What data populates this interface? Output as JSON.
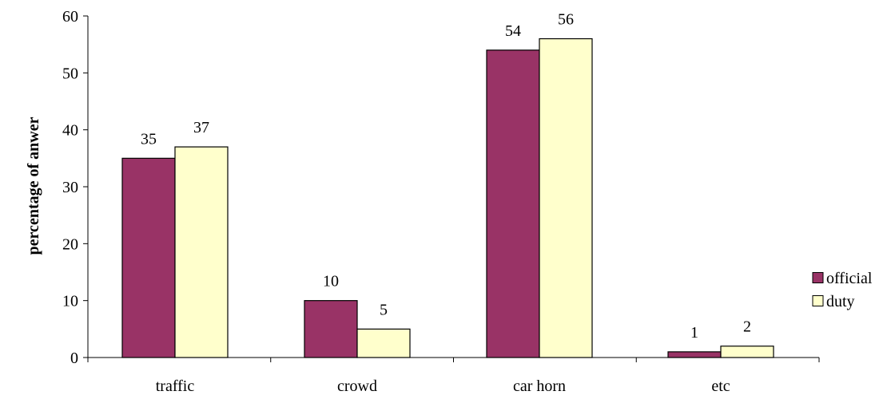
{
  "chart_data": {
    "type": "bar",
    "title": "",
    "xlabel": "",
    "ylabel": "percentage of anwer",
    "categories": [
      "traffic",
      "crowd",
      "car horn",
      "etc"
    ],
    "series": [
      {
        "name": "official",
        "values": [
          35,
          10,
          54,
          1
        ],
        "labels": [
          "35",
          "10",
          "54",
          "1"
        ],
        "color": "#993366"
      },
      {
        "name": "duty",
        "values": [
          37,
          5,
          56,
          2
        ],
        "labels": [
          "37",
          "5",
          "56",
          "2"
        ],
        "color": "#FFFFCC"
      }
    ],
    "ylim": [
      0,
      60
    ],
    "yticks": [
      0,
      10,
      20,
      30,
      40,
      50,
      60
    ],
    "grid": false,
    "legend_position": "right"
  }
}
